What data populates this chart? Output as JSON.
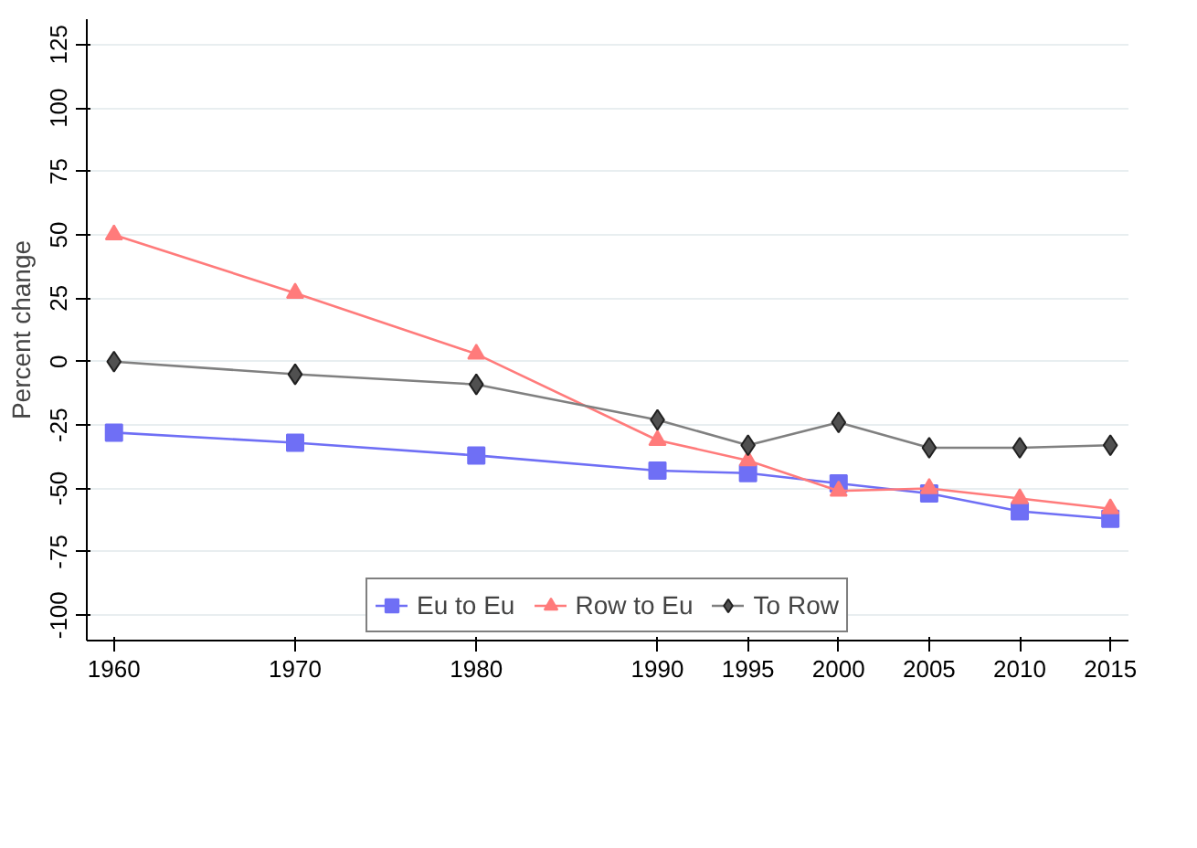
{
  "chart_data": {
    "type": "line",
    "ylabel": "Percent change",
    "x": [
      1960,
      1970,
      1980,
      1990,
      1995,
      2000,
      2005,
      2010,
      2015
    ],
    "xlim": [
      1958.5,
      2016
    ],
    "xticks": [
      1960,
      1970,
      1980,
      1990,
      1995,
      2000,
      2005,
      2010,
      2015
    ],
    "ylim": [
      -110,
      135
    ],
    "yticks": [
      -100,
      -75,
      -50,
      -25,
      0,
      25,
      50,
      75,
      100,
      125
    ],
    "grid": "y",
    "legend": "bottom",
    "series": [
      {
        "name": "Eu to Eu",
        "color": "#6f6ff5",
        "marker": "square",
        "values": [
          -28,
          -32,
          -37,
          -43,
          -44,
          -48,
          -52,
          -59,
          -62
        ]
      },
      {
        "name": "Row to Eu",
        "color": "#ff7b7b",
        "marker": "triangle",
        "values": [
          50,
          27,
          3,
          -31,
          -39,
          -51,
          -50,
          -54,
          -58
        ]
      },
      {
        "name": "To Row",
        "color": "#808080",
        "marker": "diamond",
        "values": [
          0,
          -5,
          -9,
          -23,
          -33,
          -24,
          -34,
          -34,
          -33
        ]
      }
    ]
  }
}
